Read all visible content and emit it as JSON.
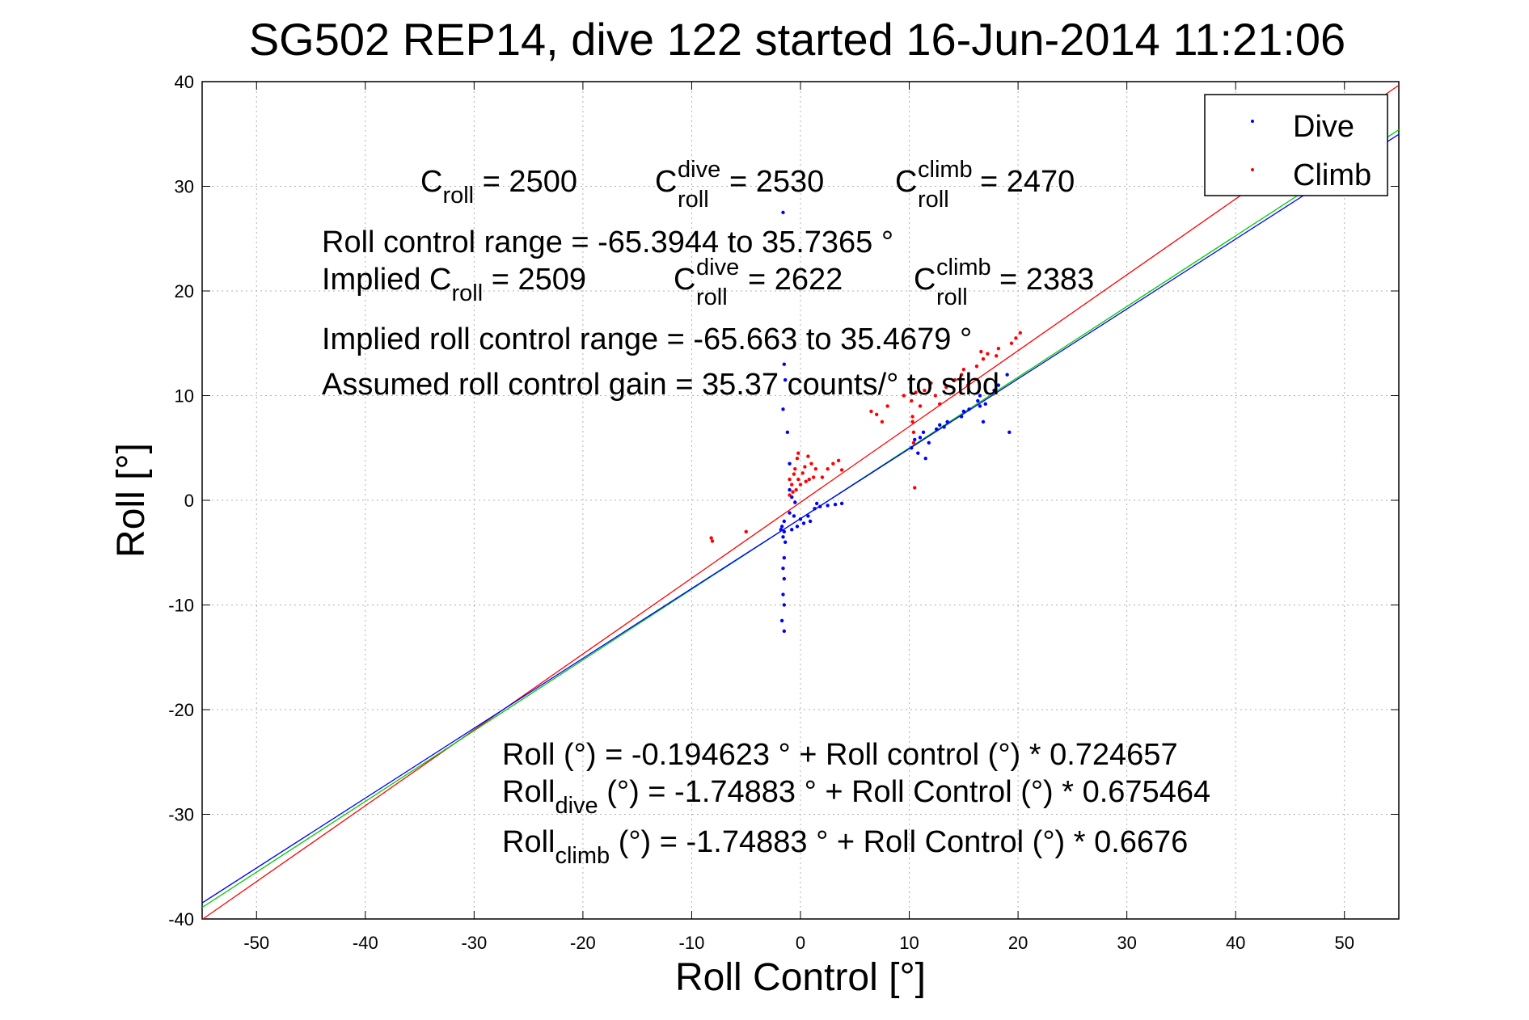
{
  "chart_data": {
    "type": "scatter",
    "title": "SG502 REP14, dive 122 started 16-Jun-2014 11:21:06",
    "xlabel": "Roll Control [°]",
    "ylabel": "Roll [°]",
    "xlim": [
      -55,
      55
    ],
    "ylim": [
      -40,
      40
    ],
    "xticks": [
      -50,
      -40,
      -30,
      -20,
      -10,
      0,
      10,
      20,
      30,
      40,
      50
    ],
    "yticks": [
      -40,
      -30,
      -20,
      -10,
      0,
      10,
      20,
      30,
      40
    ],
    "xtick_labels": [
      "-50",
      "-40",
      "-30",
      "-20",
      "-10",
      "0",
      "10",
      "20",
      "30",
      "40",
      "50"
    ],
    "ytick_labels": [
      "-40",
      "-30",
      "-20",
      "-10",
      "0",
      "10",
      "20",
      "30",
      "40"
    ],
    "grid": true,
    "legend_position": "top-right",
    "series": [
      {
        "name": "Dive",
        "color": "#0000ff",
        "points": [
          [
            -1.6,
            27.5
          ],
          [
            -1.5,
            13
          ],
          [
            -1.4,
            11.5
          ],
          [
            -1.6,
            8.7
          ],
          [
            -1.2,
            6.5
          ],
          [
            -1.0,
            3.5
          ],
          [
            -1.0,
            1.0
          ],
          [
            -0.8,
            0.3
          ],
          [
            -0.5,
            -0.2
          ],
          [
            -1.5,
            -2.0
          ],
          [
            -1.7,
            -2.5
          ],
          [
            -1.5,
            -3.0
          ],
          [
            -1.6,
            -3.5
          ],
          [
            -1.8,
            -2.8
          ],
          [
            -1.4,
            -4.0
          ],
          [
            -1.5,
            -5.5
          ],
          [
            -1.6,
            -6.5
          ],
          [
            -1.5,
            -7.5
          ],
          [
            -1.6,
            -9.0
          ],
          [
            -1.5,
            -10.0
          ],
          [
            -1.7,
            -11.5
          ],
          [
            -1.5,
            -12.5
          ],
          [
            -0.6,
            -1.5
          ],
          [
            -0.3,
            -2.5
          ],
          [
            0.0,
            -1.8
          ],
          [
            0.3,
            -2.2
          ],
          [
            0.7,
            -1.5
          ],
          [
            0.9,
            -2.0
          ],
          [
            -0.8,
            -2.8
          ],
          [
            -1.0,
            -1.2
          ],
          [
            1.5,
            -0.3
          ],
          [
            1.8,
            -0.6
          ],
          [
            2.5,
            -0.5
          ],
          [
            3.2,
            -0.4
          ],
          [
            3.8,
            -0.3
          ],
          [
            1.3,
            -0.8
          ],
          [
            10.2,
            5.0
          ],
          [
            10.5,
            5.8
          ],
          [
            11.0,
            6.0
          ],
          [
            11.3,
            6.5
          ],
          [
            11.8,
            5.5
          ],
          [
            10.8,
            4.5
          ],
          [
            11.5,
            4.0
          ],
          [
            12.5,
            6.8
          ],
          [
            13.2,
            7.0
          ],
          [
            13.5,
            7.5
          ],
          [
            14.8,
            8.0
          ],
          [
            15.0,
            8.5
          ],
          [
            16.5,
            9.0
          ],
          [
            16.3,
            9.5
          ],
          [
            16.5,
            10.0
          ],
          [
            17.0,
            9.2
          ],
          [
            17.8,
            10.5
          ],
          [
            18.2,
            11.0
          ],
          [
            19.0,
            12.0
          ],
          [
            19.2,
            6.5
          ],
          [
            16.8,
            7.5
          ],
          [
            15.5,
            8.7
          ],
          [
            12.8,
            7.2
          ]
        ]
      },
      {
        "name": "Climb",
        "color": "#ff0000",
        "points": [
          [
            -8.2,
            -3.6
          ],
          [
            -8.1,
            -3.9
          ],
          [
            -5.0,
            -3.0
          ],
          [
            -1.0,
            2.0
          ],
          [
            -0.8,
            1.5
          ],
          [
            -0.6,
            2.5
          ],
          [
            -0.5,
            3.0
          ],
          [
            -0.4,
            1.0
          ],
          [
            -0.3,
            4.0
          ],
          [
            -0.2,
            4.5
          ],
          [
            -0.2,
            2.0
          ],
          [
            0.0,
            1.5
          ],
          [
            0.2,
            2.6
          ],
          [
            0.4,
            3.2
          ],
          [
            0.5,
            1.8
          ],
          [
            0.7,
            4.2
          ],
          [
            0.8,
            2.0
          ],
          [
            1.0,
            3.5
          ],
          [
            1.2,
            2.2
          ],
          [
            1.4,
            3.0
          ],
          [
            -1.0,
            0.5
          ],
          [
            -0.7,
            0.8
          ],
          [
            2.0,
            2.2
          ],
          [
            2.5,
            3.0
          ],
          [
            3.0,
            3.5
          ],
          [
            3.5,
            3.8
          ],
          [
            3.8,
            2.9
          ],
          [
            10.2,
            9.5
          ],
          [
            10.3,
            8.0
          ],
          [
            10.4,
            6.5
          ],
          [
            10.4,
            5.5
          ],
          [
            10.5,
            1.2
          ],
          [
            10.3,
            7.5
          ],
          [
            10.6,
            10.3
          ],
          [
            11.0,
            9.0
          ],
          [
            11.4,
            10.5
          ],
          [
            12.0,
            11.2
          ],
          [
            12.4,
            10.0
          ],
          [
            12.8,
            9.2
          ],
          [
            13.4,
            10.8
          ],
          [
            14.2,
            11.5
          ],
          [
            14.8,
            12.0
          ],
          [
            15.0,
            12.5
          ],
          [
            15.4,
            11.0
          ],
          [
            16.2,
            12.8
          ],
          [
            16.8,
            13.5
          ],
          [
            17.2,
            14.0
          ],
          [
            18.0,
            13.8
          ],
          [
            18.2,
            14.5
          ],
          [
            19.4,
            15.0
          ],
          [
            19.8,
            15.5
          ],
          [
            20.2,
            16.0
          ],
          [
            16.6,
            14.2
          ],
          [
            9.5,
            10.0
          ],
          [
            8.0,
            9.0
          ],
          [
            7.0,
            8.2
          ],
          [
            6.5,
            8.5
          ],
          [
            7.5,
            7.5
          ]
        ]
      }
    ],
    "fit_lines": [
      {
        "color": "#ff0000",
        "intercept": -0.194623,
        "slope": 0.724657
      },
      {
        "color": "#00cc00",
        "intercept": -1.74883,
        "slope": 0.675464
      },
      {
        "color": "#0000ff",
        "intercept": -1.74883,
        "slope": 0.6676
      }
    ]
  },
  "annotations": {
    "line1": {
      "c": "C",
      "sub_roll": "roll",
      "val_roll": " = 2500",
      "c_dive": "C",
      "sup_dive": "dive",
      "sub_dive": "roll",
      "val_dive": " = 2530",
      "c_climb": "C",
      "sup_climb": "climb",
      "sub_climb": "roll",
      "val_climb": " = 2470"
    },
    "range": "Roll control range = -65.3944 to 35.7365 °",
    "implied": {
      "label": "Implied C",
      "sub_roll": "roll",
      "val_roll": " = 2509",
      "c_dive": "C",
      "sup_dive": "dive",
      "sub_dive": "roll",
      "val_dive": " = 2622",
      "c_climb": "C",
      "sup_climb": "climb",
      "sub_climb": "roll",
      "val_climb": " = 2383"
    },
    "implied_range": "Implied roll control range = -65.663 to 35.4679 °",
    "gain": "Assumed roll control gain = 35.37 counts/° to stbd",
    "eq1": "Roll (°) = -0.194623 ° + Roll control (°) * 0.724657",
    "eq2": {
      "a": "Roll",
      "sub": "dive",
      "b": " (°) = -1.74883 ° + Roll Control (°) * 0.675464"
    },
    "eq3": {
      "a": "Roll",
      "sub": "climb",
      "b": " (°) = -1.74883 ° + Roll Control (°) * 0.6676"
    }
  }
}
